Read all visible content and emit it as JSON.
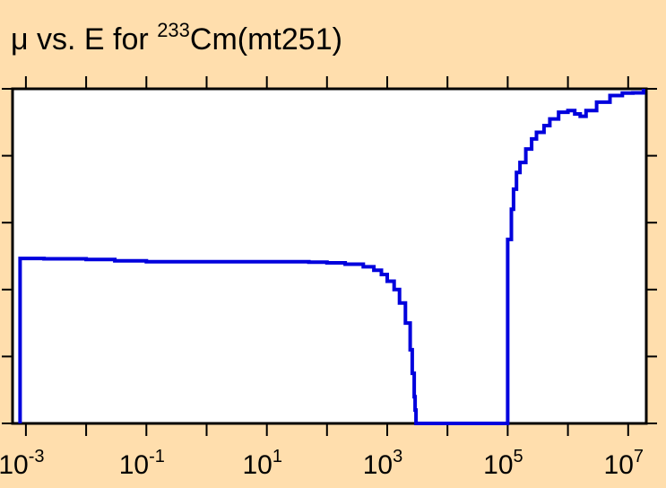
{
  "chart_data": {
    "type": "line",
    "title": {
      "prefix": "μ vs. E for ",
      "superscript": "233",
      "suffix": "Cm(mt251)"
    },
    "xlabel": "",
    "ylabel": "",
    "x_scale": "log",
    "xlim": [
      0.0006,
      20000000
    ],
    "ylim": [
      0,
      1
    ],
    "grid": false,
    "legend": "none",
    "x_tick_labels": [
      {
        "base": "10",
        "exp": "-3"
      },
      {
        "base": "10",
        "exp": "-1"
      },
      {
        "base": "10",
        "exp": "1"
      },
      {
        "base": "10",
        "exp": "3"
      },
      {
        "base": "10",
        "exp": "5"
      },
      {
        "base": "10",
        "exp": "7"
      }
    ],
    "x_tick_values": [
      0.001,
      0.1,
      10,
      1000,
      100000,
      10000000
    ],
    "x_minor_tick_values": [
      0.01,
      1,
      100,
      10000,
      1000000
    ],
    "y_tick_values": [
      0,
      0.2,
      0.4,
      0.6,
      0.8,
      1.0
    ],
    "line_color": "#0000DD",
    "series": [
      {
        "x": [
          0.0008,
          0.0008,
          0.002,
          0.01,
          0.03,
          0.1,
          1,
          10,
          50,
          100,
          200,
          400,
          600,
          800,
          1000,
          1300,
          1600,
          2000,
          2400,
          2600,
          2800,
          2900,
          3000,
          3000,
          100000,
          100000,
          115000,
          125000,
          140000,
          160000,
          200000,
          250000,
          300000,
          400000,
          500000,
          700000,
          1000000,
          1300000,
          1600000,
          2000000,
          3000000,
          5000000,
          8000000,
          12000000,
          18000000
        ],
        "y": [
          0,
          0.493,
          0.492,
          0.49,
          0.486,
          0.483,
          0.483,
          0.483,
          0.482,
          0.48,
          0.476,
          0.468,
          0.458,
          0.445,
          0.425,
          0.4,
          0.36,
          0.3,
          0.22,
          0.15,
          0.08,
          0.04,
          0.01,
          0,
          0,
          0.55,
          0.64,
          0.7,
          0.75,
          0.78,
          0.82,
          0.85,
          0.87,
          0.89,
          0.91,
          0.93,
          0.935,
          0.925,
          0.918,
          0.935,
          0.96,
          0.98,
          0.987,
          0.988,
          1.0
        ]
      }
    ]
  }
}
